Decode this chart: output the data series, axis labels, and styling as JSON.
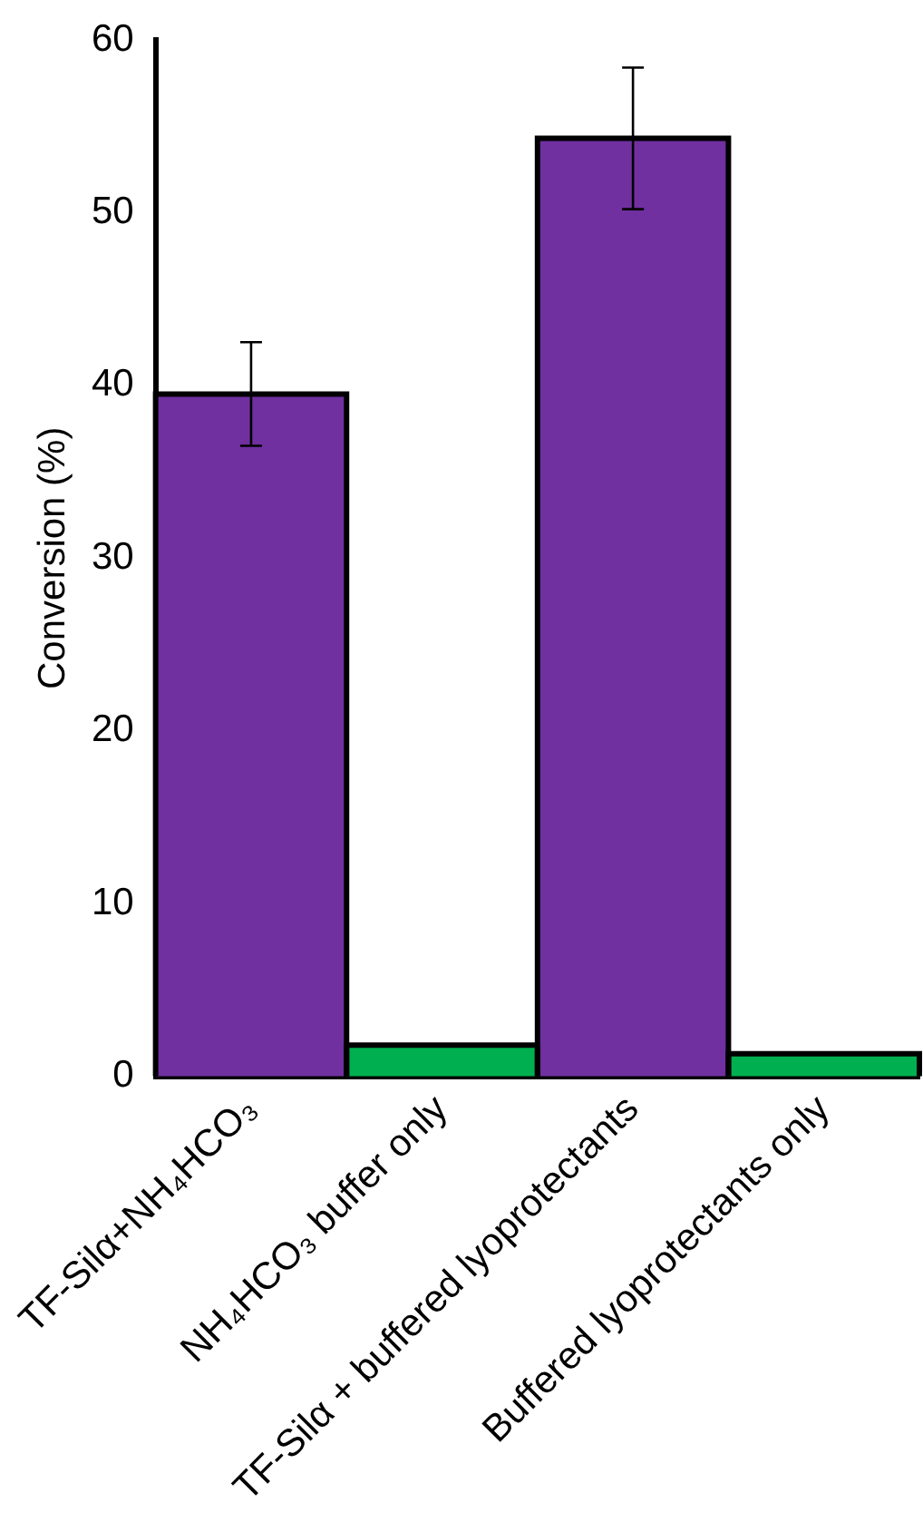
{
  "chart_data": {
    "type": "bar",
    "ylabel": "Conversion (%)",
    "categories": [
      "TF-Silα+NH₄HCO₃",
      "NH₄HCO₃ buffer only",
      "TF-Silα + buffered lyoprotectants",
      "Buffered lyoprotectants only"
    ],
    "values": [
      39.5,
      1.8,
      54.3,
      1.3
    ],
    "colors": [
      "#7030a0",
      "#00b050",
      "#7030a0",
      "#00b050"
    ],
    "errors": [
      3.0,
      null,
      4.1,
      null
    ],
    "ylim": [
      0,
      60
    ],
    "yticks": [
      0,
      10,
      20,
      30,
      40,
      50,
      60
    ],
    "grid": false,
    "legend": false
  }
}
